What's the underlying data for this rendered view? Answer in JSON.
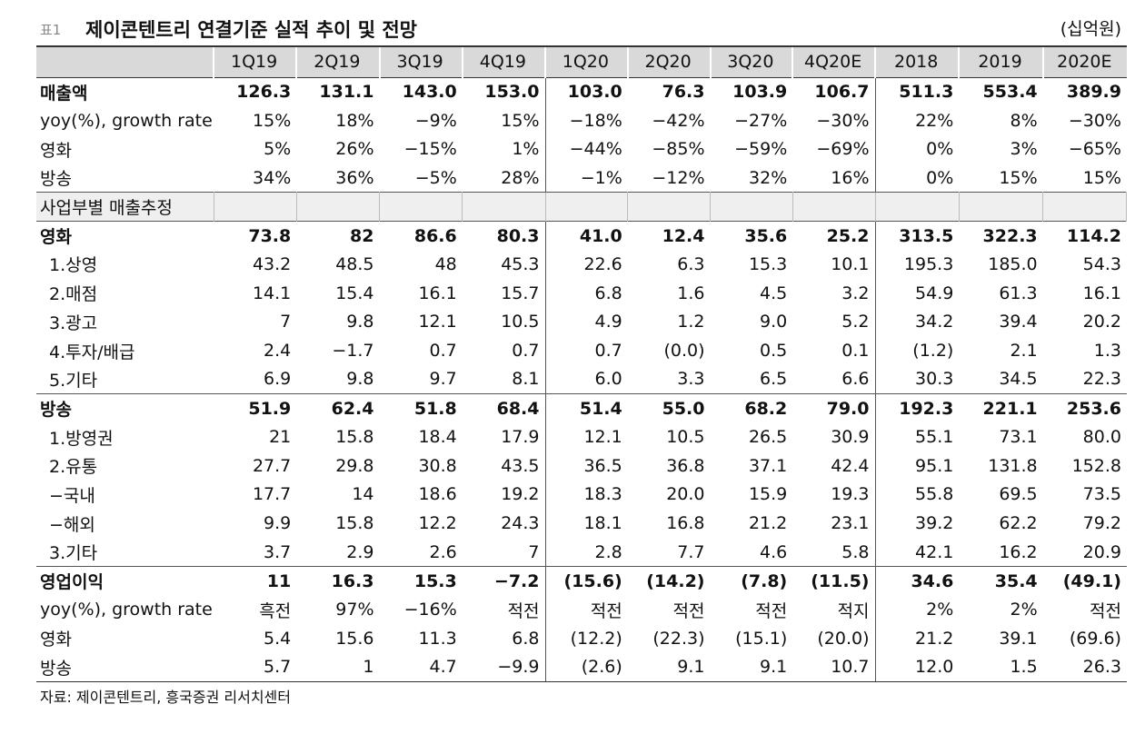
{
  "header": {
    "label": "표1",
    "title": "제이콘텐트리 연결기준 실적 추이 및 전망",
    "unit": "(십억원)"
  },
  "table": {
    "columns": [
      "1Q19",
      "2Q19",
      "3Q19",
      "4Q19",
      "1Q20",
      "2Q20",
      "3Q20",
      "4Q20E",
      "2018",
      "2019",
      "2020E"
    ],
    "rows": [
      {
        "label": "매출액",
        "values": [
          "126.3",
          "131.1",
          "143.0",
          "153.0",
          "103.0",
          "76.3",
          "103.9",
          "106.7",
          "511.3",
          "553.4",
          "389.9"
        ]
      },
      {
        "label": "yoy(%), growth rate",
        "values": [
          "15%",
          "18%",
          "−9%",
          "15%",
          "−18%",
          "−42%",
          "−27%",
          "−30%",
          "22%",
          "8%",
          "−30%"
        ]
      },
      {
        "label": "영화",
        "values": [
          "5%",
          "26%",
          "−15%",
          "1%",
          "−44%",
          "−85%",
          "−59%",
          "−69%",
          "0%",
          "3%",
          "−65%"
        ]
      },
      {
        "label": "방송",
        "values": [
          "34%",
          "36%",
          "−5%",
          "28%",
          "−1%",
          "−12%",
          "32%",
          "16%",
          "0%",
          "15%",
          "15%"
        ]
      },
      {
        "label": "사업부별 매출추정"
      },
      {
        "label": "영화",
        "values": [
          "73.8",
          "82",
          "86.6",
          "80.3",
          "41.0",
          "12.4",
          "35.6",
          "25.2",
          "313.5",
          "322.3",
          "114.2"
        ]
      },
      {
        "label": "1.상영",
        "values": [
          "43.2",
          "48.5",
          "48",
          "45.3",
          "22.6",
          "6.3",
          "15.3",
          "10.1",
          "195.3",
          "185.0",
          "54.3"
        ]
      },
      {
        "label": "2.매점",
        "values": [
          "14.1",
          "15.4",
          "16.1",
          "15.7",
          "6.8",
          "1.6",
          "4.5",
          "3.2",
          "54.9",
          "61.3",
          "16.1"
        ]
      },
      {
        "label": "3.광고",
        "values": [
          "7",
          "9.8",
          "12.1",
          "10.5",
          "4.9",
          "1.2",
          "9.0",
          "5.2",
          "34.2",
          "39.4",
          "20.2"
        ]
      },
      {
        "label": "4.투자/배급",
        "values": [
          "2.4",
          "−1.7",
          "0.7",
          "0.7",
          "0.7",
          "(0.0)",
          "0.5",
          "0.1",
          "(1.2)",
          "2.1",
          "1.3"
        ]
      },
      {
        "label": "5.기타",
        "values": [
          "6.9",
          "9.8",
          "9.7",
          "8.1",
          "6.0",
          "3.3",
          "6.5",
          "6.6",
          "30.3",
          "34.5",
          "22.3"
        ]
      },
      {
        "label": "방송",
        "values": [
          "51.9",
          "62.4",
          "51.8",
          "68.4",
          "51.4",
          "55.0",
          "68.2",
          "79.0",
          "192.3",
          "221.1",
          "253.6"
        ]
      },
      {
        "label": "1.방영권",
        "values": [
          "21",
          "15.8",
          "18.4",
          "17.9",
          "12.1",
          "10.5",
          "26.5",
          "30.9",
          "55.1",
          "73.1",
          "80.0"
        ]
      },
      {
        "label": "2.유통",
        "values": [
          "27.7",
          "29.8",
          "30.8",
          "43.5",
          "36.5",
          "36.8",
          "37.1",
          "42.4",
          "95.1",
          "131.8",
          "152.8"
        ]
      },
      {
        "label": "−국내",
        "values": [
          "17.7",
          "14",
          "18.6",
          "19.2",
          "18.3",
          "20.0",
          "15.9",
          "19.3",
          "55.8",
          "69.5",
          "73.5"
        ]
      },
      {
        "label": "−해외",
        "values": [
          "9.9",
          "15.8",
          "12.2",
          "24.3",
          "18.1",
          "16.8",
          "21.2",
          "23.1",
          "39.2",
          "62.2",
          "79.2"
        ]
      },
      {
        "label": "3.기타",
        "values": [
          "3.7",
          "2.9",
          "2.6",
          "7",
          "2.8",
          "7.7",
          "4.6",
          "5.8",
          "42.1",
          "16.2",
          "20.9"
        ]
      },
      {
        "label": "영업이익",
        "values": [
          "11",
          "16.3",
          "15.3",
          "−7.2",
          "(15.6)",
          "(14.2)",
          "(7.8)",
          "(11.5)",
          "34.6",
          "35.4",
          "(49.1)"
        ]
      },
      {
        "label": "yoy(%), growth rate",
        "values": [
          "흑전",
          "97%",
          "−16%",
          "적전",
          "적전",
          "적전",
          "적전",
          "적지",
          "2%",
          "2%",
          "적전"
        ]
      },
      {
        "label": "영화",
        "values": [
          "5.4",
          "15.6",
          "11.3",
          "6.8",
          "(12.2)",
          "(22.3)",
          "(15.1)",
          "(20.0)",
          "21.2",
          "39.1",
          "(69.6)"
        ]
      },
      {
        "label": "방송",
        "values": [
          "5.7",
          "1",
          "4.7",
          "−9.9",
          "(2.6)",
          "9.1",
          "9.1",
          "10.7",
          "12.0",
          "1.5",
          "26.3"
        ]
      }
    ]
  },
  "footer": {
    "source": "자료: 제이콘텐트리, 흥국증권 리서치센터"
  }
}
